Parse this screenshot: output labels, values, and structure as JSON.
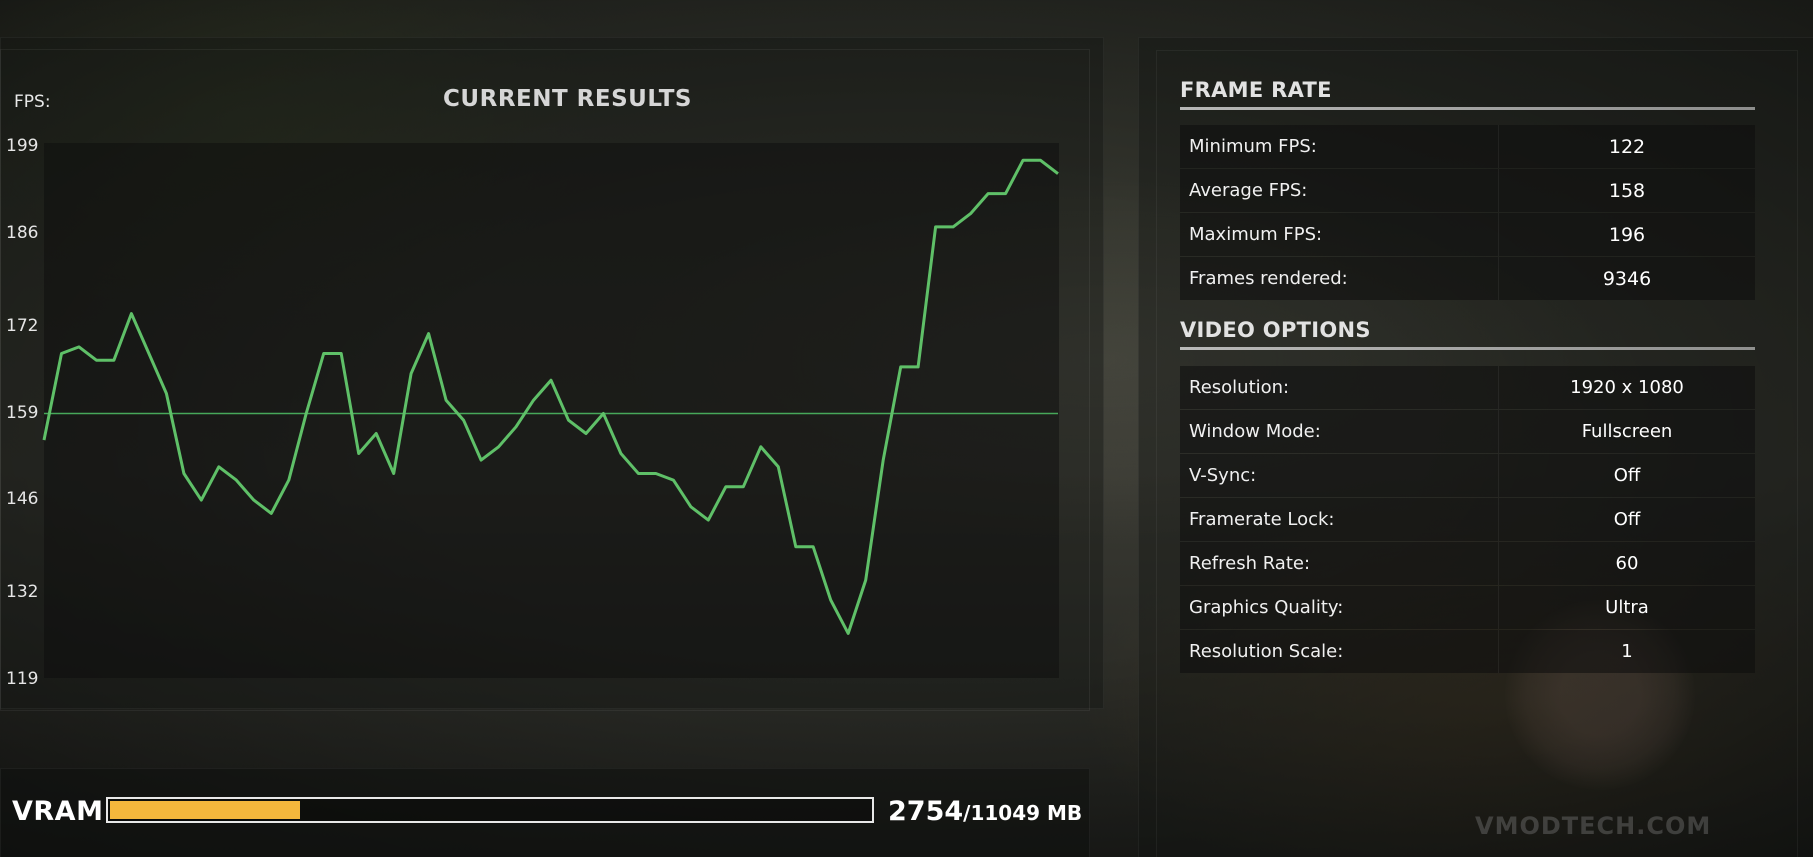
{
  "chart": {
    "fps_label": "FPS:",
    "title": "CURRENT RESULTS"
  },
  "chart_data": {
    "type": "line",
    "title": "CURRENT RESULTS",
    "ylabel": "FPS:",
    "yticks": [
      199,
      186,
      172,
      159,
      146,
      132,
      119
    ],
    "ylim": [
      119,
      199
    ],
    "average_line": 159,
    "series_color": "#5fc068",
    "series": [
      {
        "values": [
          155,
          168,
          169,
          167,
          167,
          174,
          168,
          162,
          150,
          146,
          151,
          149,
          146,
          144,
          149,
          159,
          168,
          168,
          153,
          156,
          150,
          165,
          171,
          161,
          158,
          152,
          154,
          157,
          161,
          164,
          158,
          156,
          159,
          153,
          150,
          150,
          149,
          145,
          143,
          148,
          148,
          154,
          151,
          139,
          139,
          131,
          126,
          134,
          152,
          166,
          166,
          187,
          187,
          189,
          192,
          192,
          197,
          197,
          195
        ]
      }
    ]
  },
  "vram": {
    "label": "VRAM",
    "used": "2754",
    "total": "/11049 MB",
    "fraction": 0.2493,
    "fill_color": "#f4b73c"
  },
  "frame_rate": {
    "title": "FRAME RATE",
    "rows": [
      {
        "label": "Minimum FPS:",
        "value": "122"
      },
      {
        "label": "Average FPS:",
        "value": "158"
      },
      {
        "label": "Maximum FPS:",
        "value": "196"
      },
      {
        "label": "Frames rendered:",
        "value": "9346"
      }
    ]
  },
  "video_options": {
    "title": "VIDEO OPTIONS",
    "rows": [
      {
        "label": "Resolution:",
        "value": "1920 x 1080"
      },
      {
        "label": "Window Mode:",
        "value": "Fullscreen"
      },
      {
        "label": "V-Sync:",
        "value": "Off"
      },
      {
        "label": "Framerate Lock:",
        "value": "Off"
      },
      {
        "label": "Refresh Rate:",
        "value": "60"
      },
      {
        "label": "Graphics Quality:",
        "value": "Ultra"
      },
      {
        "label": "Resolution Scale:",
        "value": "1"
      }
    ]
  },
  "watermark": "VMODTECH.COM"
}
